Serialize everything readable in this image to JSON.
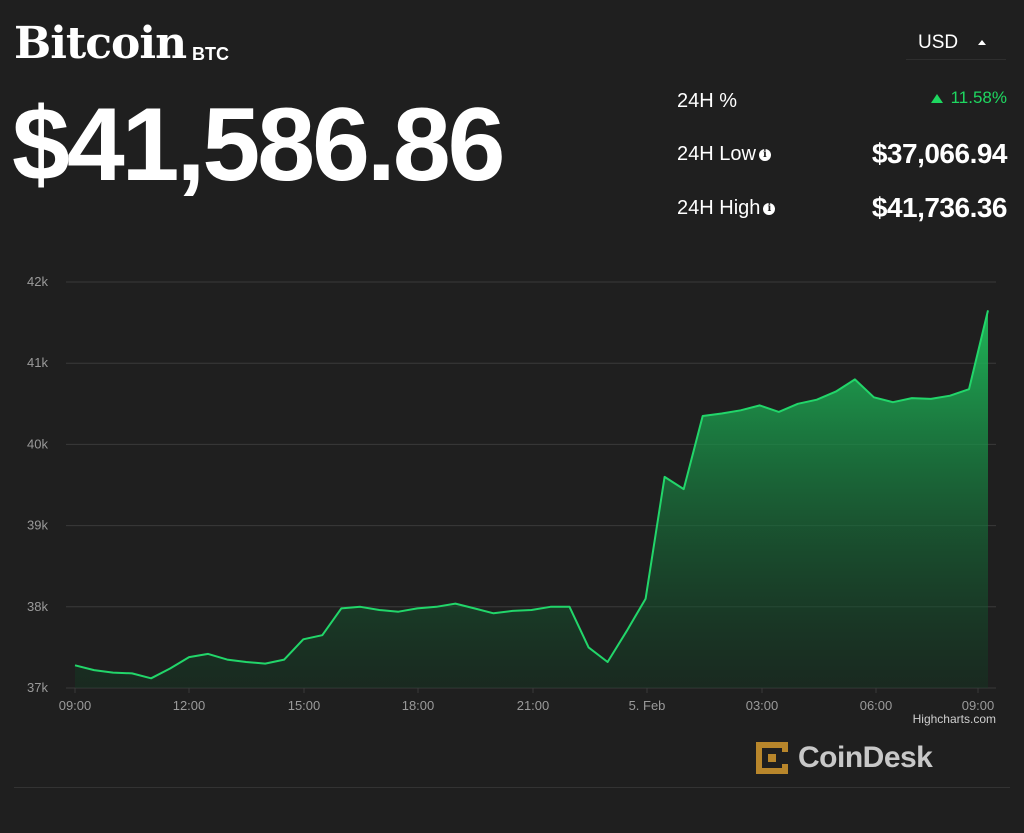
{
  "coin": {
    "name": "Bitcoin",
    "symbol": "BTC",
    "price": "$41,586.86"
  },
  "currency": {
    "selected": "USD"
  },
  "stats": {
    "change_label": "24H %",
    "change_value": "11.58%",
    "low_label": "24H Low",
    "low_value": "$37,066.94",
    "high_label": "24H High",
    "high_value": "$41,736.36"
  },
  "credits": "Highcharts.com",
  "brand": {
    "name": "CoinDesk"
  },
  "colors": {
    "background": "#1f1f1f",
    "line": "#22d66a",
    "positive": "#1ed760",
    "grid": "#3a3a3a",
    "axis_text": "#9a9a9a"
  },
  "chart_data": {
    "type": "area",
    "title": "",
    "xlabel": "",
    "ylabel": "",
    "ylim": [
      37000,
      42000
    ],
    "y_tick_labels": [
      "37k",
      "38k",
      "39k",
      "40k",
      "41k",
      "42k"
    ],
    "x_tick_labels": [
      "09:00",
      "12:00",
      "15:00",
      "18:00",
      "21:00",
      "5. Feb",
      "03:00",
      "06:00",
      "09:00"
    ],
    "grid": true,
    "legend": "none",
    "series": [
      {
        "x": [
          "09:00",
          "09:30",
          "10:00",
          "10:30",
          "11:00",
          "11:30",
          "12:00",
          "12:30",
          "13:00",
          "13:30",
          "14:00",
          "14:30",
          "15:00",
          "15:30",
          "16:00",
          "16:30",
          "17:00",
          "17:30",
          "18:00",
          "18:30",
          "19:00",
          "19:30",
          "20:00",
          "20:30",
          "21:00",
          "21:30",
          "22:00",
          "22:30",
          "23:00",
          "23:30",
          "00:00",
          "00:30",
          "01:00",
          "01:30",
          "02:00",
          "02:30",
          "03:00",
          "03:30",
          "04:00",
          "04:30",
          "05:00",
          "05:30",
          "06:00",
          "06:30",
          "07:00",
          "07:30",
          "08:00",
          "08:30",
          "09:00"
        ],
        "values": [
          37280,
          37220,
          37190,
          37180,
          37120,
          37240,
          37380,
          37420,
          37350,
          37320,
          37300,
          37350,
          37600,
          37650,
          37980,
          38000,
          37960,
          37940,
          37980,
          38000,
          38040,
          37980,
          37920,
          37950,
          37960,
          38000,
          38000,
          37500,
          37320,
          37700,
          38100,
          39600,
          39450,
          40350,
          40380,
          40420,
          40480,
          40400,
          40500,
          40550,
          40650,
          40800,
          40580,
          40520,
          40570,
          40560,
          40600,
          40680,
          41650
        ]
      }
    ]
  }
}
